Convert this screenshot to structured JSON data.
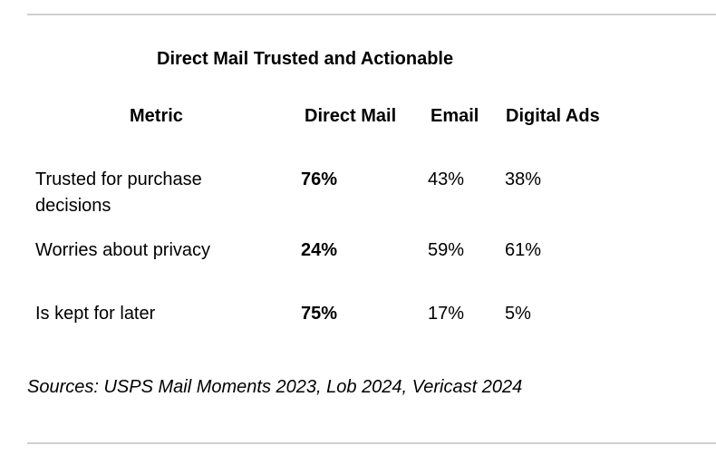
{
  "title": "Direct Mail Trusted and Actionable",
  "table": {
    "headers": {
      "metric": "Metric",
      "direct_mail": "Direct Mail",
      "email": "Email",
      "digital_ads": "Digital Ads"
    },
    "rows": [
      {
        "metric": "Trusted for purchase decisions",
        "direct_mail": "76%",
        "email": "43%",
        "digital_ads": "38%"
      },
      {
        "metric": "Worries about privacy",
        "direct_mail": "24%",
        "email": "59%",
        "digital_ads": "61%"
      },
      {
        "metric": "Is kept for later",
        "direct_mail": "75%",
        "email": "17%",
        "digital_ads": "5%"
      }
    ]
  },
  "sources": "Sources: USPS Mail Moments 2023, Lob 2024, Vericast 2024"
}
